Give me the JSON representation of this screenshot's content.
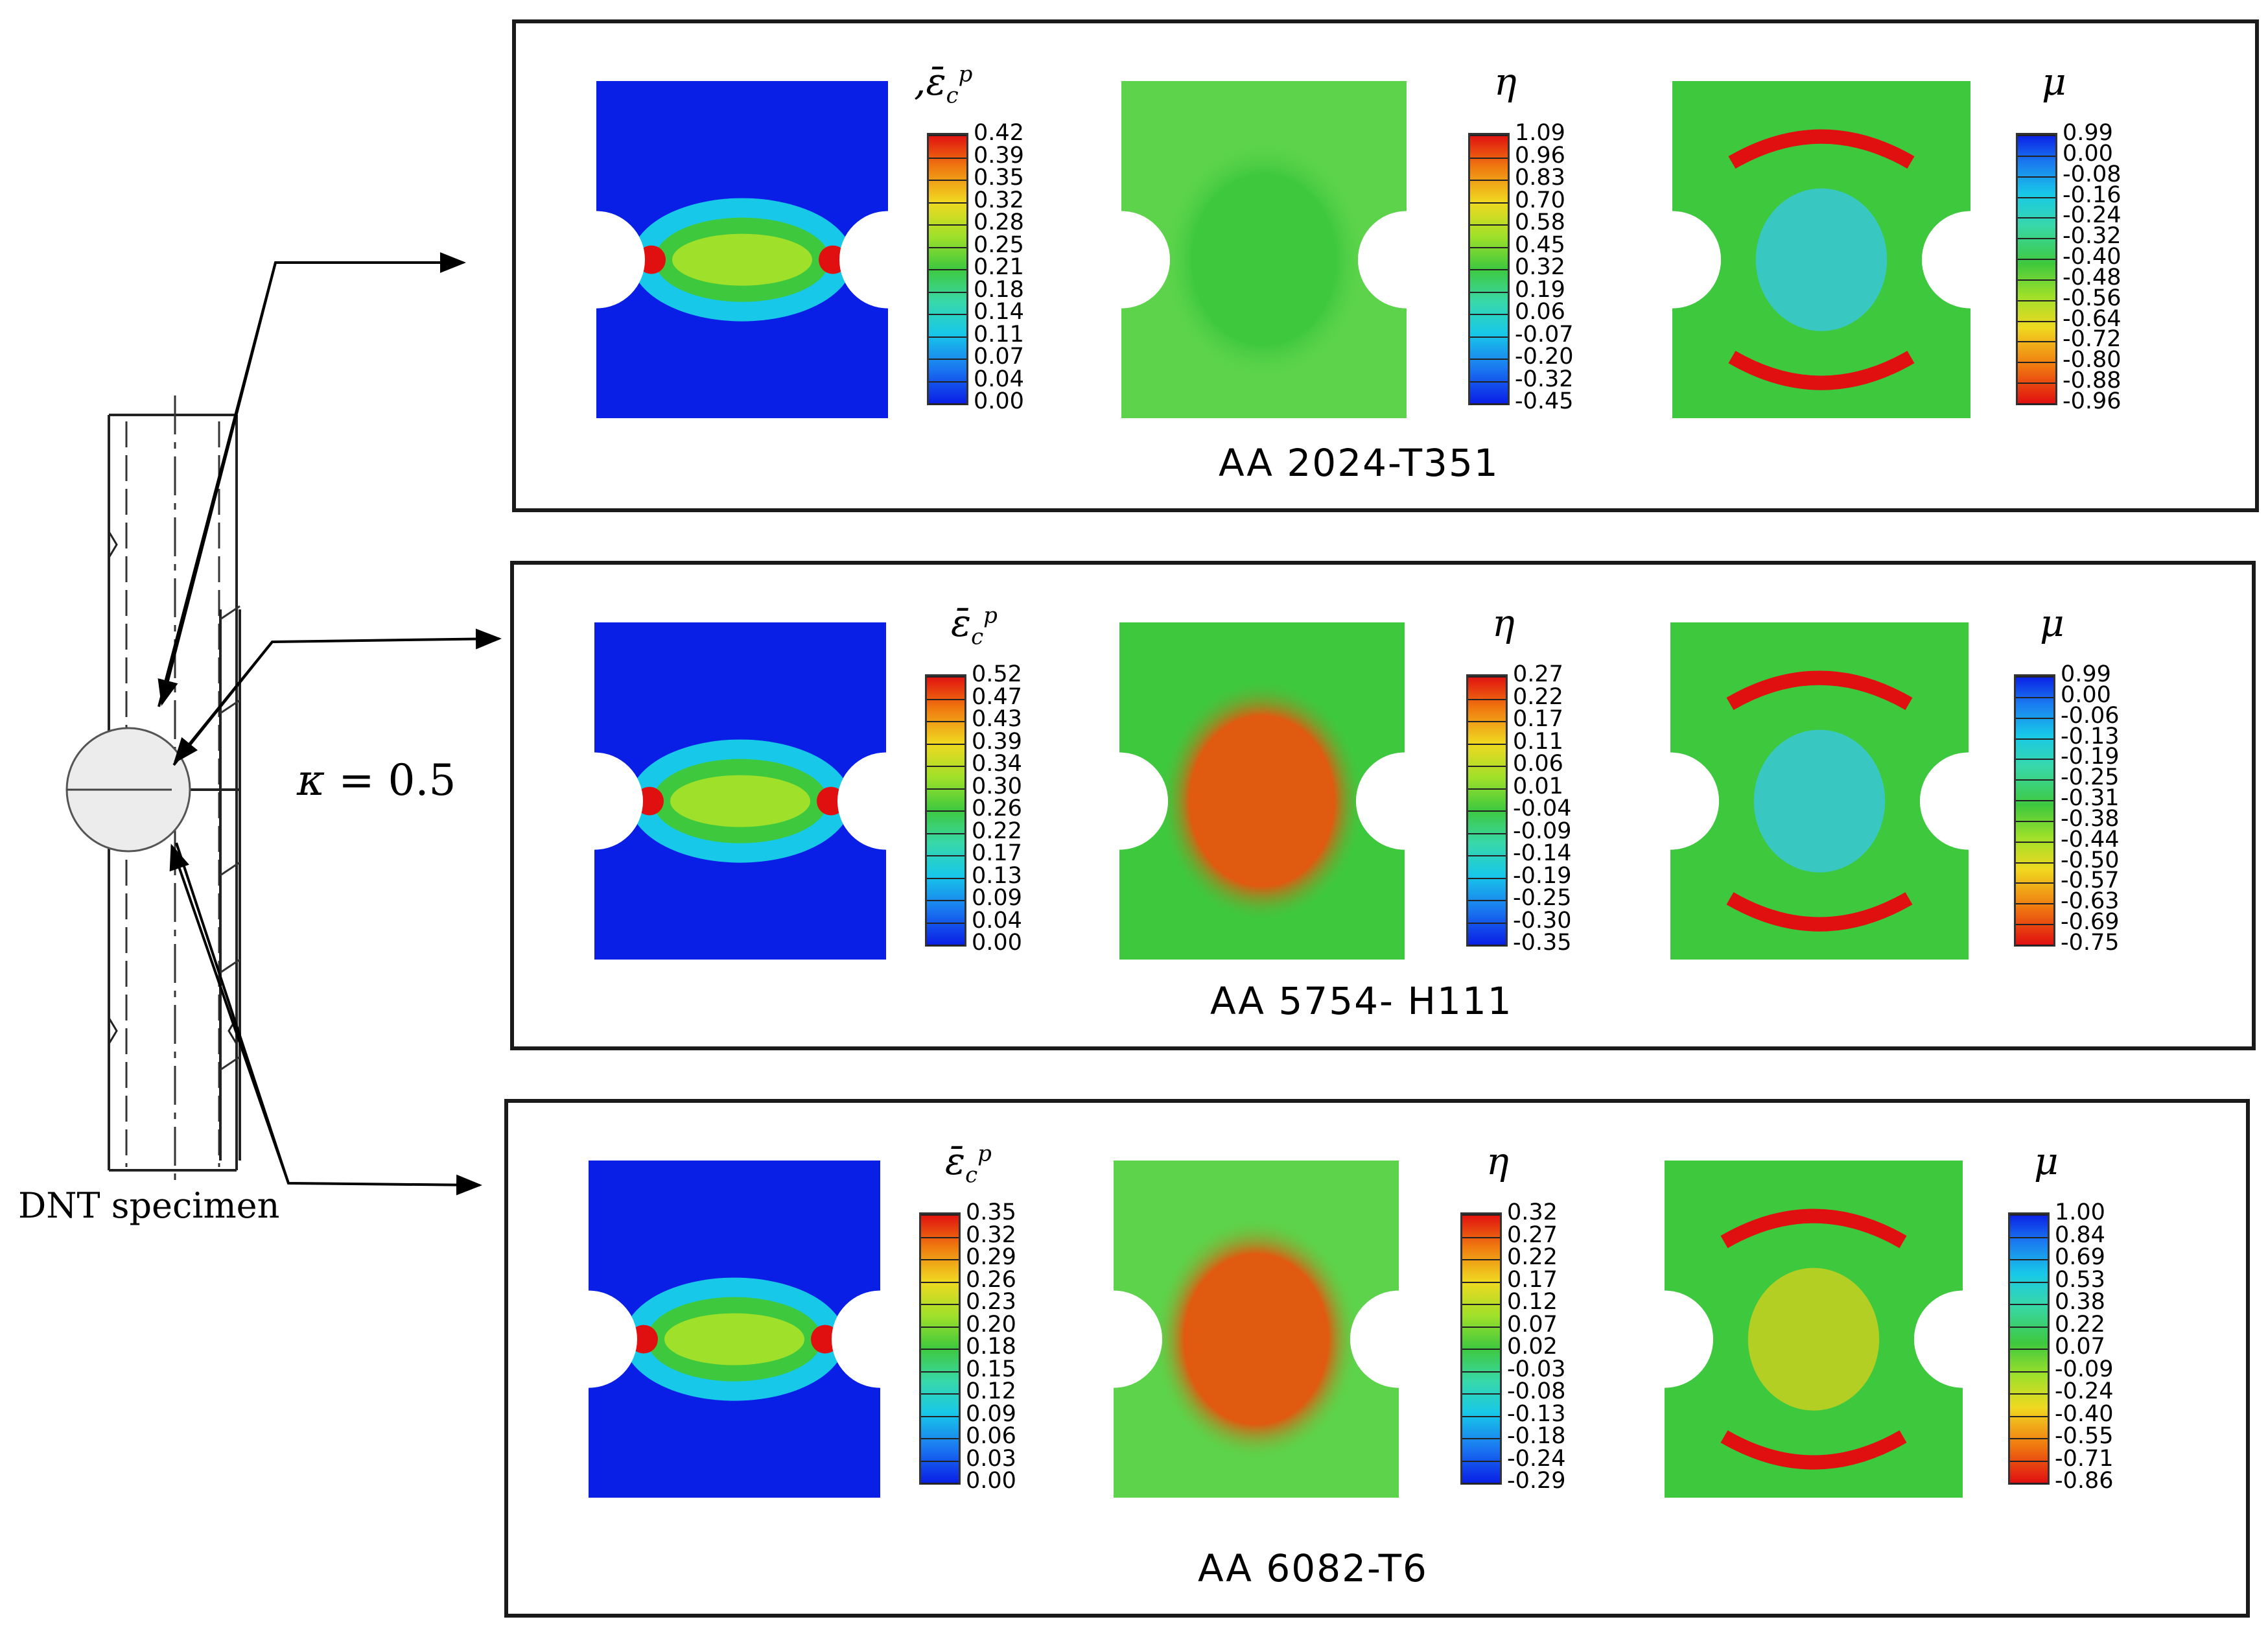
{
  "specimen": {
    "label": "DNT specimen",
    "kappa_symbol": "κ",
    "kappa_equals": "= 0.5"
  },
  "panels": [
    {
      "material": "AA 2024-T351",
      "plots": [
        {
          "variable": "strain",
          "prefix": ",",
          "symbol": "ε̄",
          "sub": "c",
          "sup": "p",
          "ticks": [
            "0.42",
            "0.39",
            "0.35",
            "0.32",
            "0.28",
            "0.25",
            "0.21",
            "0.18",
            "0.14",
            "0.11",
            "0.07",
            "0.04",
            "0.00"
          ],
          "colormap": "rainbow"
        },
        {
          "variable": "triaxiality",
          "prefix": "",
          "symbol": "η",
          "sub": "",
          "sup": "",
          "ticks": [
            "1.09",
            "0.96",
            "0.83",
            "0.70",
            "0.58",
            "0.45",
            "0.32",
            "0.19",
            "0.06",
            "-0.07",
            "-0.20",
            "-0.32",
            "-0.45"
          ],
          "colormap": "rainbow"
        },
        {
          "variable": "lode",
          "prefix": "",
          "symbol": "μ",
          "sub": "",
          "sup": "",
          "ticks": [
            "0.99",
            "0.00",
            "-0.08",
            "-0.16",
            "-0.24",
            "-0.32",
            "-0.40",
            "-0.48",
            "-0.56",
            "-0.64",
            "-0.72",
            "-0.80",
            "-0.88",
            "-0.96"
          ],
          "colormap": "reversed"
        }
      ]
    },
    {
      "material": "AA 5754- H111",
      "plots": [
        {
          "variable": "strain",
          "prefix": "",
          "symbol": "ε̄",
          "sub": "c",
          "sup": "p",
          "ticks": [
            "0.52",
            "0.47",
            "0.43",
            "0.39",
            "0.34",
            "0.30",
            "0.26",
            "0.22",
            "0.17",
            "0.13",
            "0.09",
            "0.04",
            "0.00"
          ],
          "colormap": "rainbow"
        },
        {
          "variable": "triaxiality",
          "prefix": "",
          "symbol": "η",
          "sub": "",
          "sup": "",
          "ticks": [
            "0.27",
            "0.22",
            "0.17",
            "0.11",
            "0.06",
            "0.01",
            "-0.04",
            "-0.09",
            "-0.14",
            "-0.19",
            "-0.25",
            "-0.30",
            "-0.35"
          ],
          "colormap": "rainbow"
        },
        {
          "variable": "lode",
          "prefix": "",
          "symbol": "μ",
          "sub": "",
          "sup": "",
          "ticks": [
            "0.99",
            "0.00",
            "-0.06",
            "-0.13",
            "-0.19",
            "-0.25",
            "-0.31",
            "-0.38",
            "-0.44",
            "-0.50",
            "-0.57",
            "-0.63",
            "-0.69",
            "-0.75"
          ],
          "colormap": "reversed"
        }
      ]
    },
    {
      "material": "AA 6082-T6",
      "plots": [
        {
          "variable": "strain",
          "prefix": "",
          "symbol": "ε̄",
          "sub": "c",
          "sup": "p",
          "ticks": [
            "0.35",
            "0.32",
            "0.29",
            "0.26",
            "0.23",
            "0.20",
            "0.18",
            "0.15",
            "0.12",
            "0.09",
            "0.06",
            "0.03",
            "0.00"
          ],
          "colormap": "rainbow"
        },
        {
          "variable": "triaxiality",
          "prefix": "",
          "symbol": "η",
          "sub": "",
          "sup": "",
          "ticks": [
            "0.32",
            "0.27",
            "0.22",
            "0.17",
            "0.12",
            "0.07",
            "0.02",
            "-0.03",
            "-0.08",
            "-0.13",
            "-0.18",
            "-0.24",
            "-0.29"
          ],
          "colormap": "rainbow"
        },
        {
          "variable": "lode",
          "prefix": "",
          "symbol": "μ",
          "sub": "",
          "sup": "",
          "ticks": [
            "1.00",
            "0.84",
            "0.69",
            "0.53",
            "0.38",
            "0.22",
            "0.07",
            "-0.09",
            "-0.24",
            "-0.40",
            "-0.55",
            "-0.71",
            "-0.86"
          ],
          "colormap": "reversed"
        }
      ]
    }
  ],
  "colors": {
    "blue": "#0a1fe6",
    "green": "#3ec83e",
    "orange": "#e05a10",
    "red": "#e01010",
    "frame": "#1a1a1a"
  }
}
